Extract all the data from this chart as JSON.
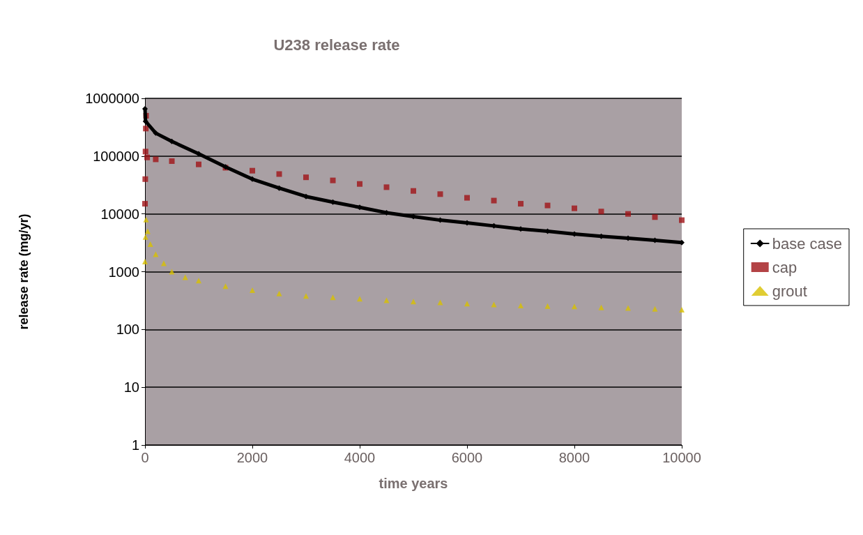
{
  "chart_data": {
    "type": "line",
    "title": "U238 release rate",
    "xlabel": "time years",
    "ylabel": "release rate (mg/yr)",
    "log": "y",
    "xlim": [
      0,
      10000
    ],
    "xticks": [
      0,
      2000,
      4000,
      6000,
      8000,
      10000
    ],
    "ylim": [
      1,
      1000000
    ],
    "yticks": [
      1,
      10,
      100,
      1000,
      10000,
      100000,
      1000000
    ],
    "grid": "y",
    "legend": "right",
    "series": [
      {
        "name": "base case",
        "type": "line",
        "marker": "diamond",
        "color": "#000000",
        "x": [
          0,
          10,
          200,
          500,
          1000,
          1500,
          2000,
          2500,
          3000,
          3500,
          4000,
          4500,
          5000,
          5500,
          6000,
          6500,
          7000,
          7500,
          8000,
          8500,
          9000,
          9500,
          10000
        ],
        "values": [
          660000,
          400000,
          250000,
          180000,
          110000,
          65000,
          40000,
          28000,
          20000,
          16000,
          13000,
          10500,
          9000,
          7800,
          7000,
          6200,
          5500,
          5000,
          4500,
          4100,
          3800,
          3500,
          3200
        ]
      },
      {
        "name": "cap",
        "type": "scatter",
        "marker": "square",
        "color": "#a01418",
        "x": [
          0,
          5,
          10,
          15,
          20,
          40,
          200,
          500,
          1000,
          1500,
          2000,
          2500,
          3000,
          3500,
          4000,
          4500,
          5000,
          5500,
          6000,
          6500,
          7000,
          7500,
          8000,
          8500,
          9000,
          9500,
          10000
        ],
        "values": [
          15000,
          40000,
          120000,
          300000,
          500000,
          95000,
          88000,
          82000,
          72000,
          63000,
          56000,
          49000,
          43000,
          38000,
          33000,
          29000,
          25000,
          22000,
          19000,
          17000,
          15000,
          14000,
          12500,
          11000,
          10000,
          8800,
          7800
        ]
      },
      {
        "name": "grout",
        "type": "scatter",
        "marker": "triangle",
        "color": "#d8c000",
        "x": [
          0,
          10,
          20,
          50,
          100,
          200,
          350,
          500,
          750,
          1000,
          1500,
          2000,
          2500,
          3000,
          3500,
          4000,
          4500,
          5000,
          5500,
          6000,
          6500,
          7000,
          7500,
          8000,
          8500,
          9000,
          9500,
          10000
        ],
        "values": [
          1500,
          4000,
          8000,
          5000,
          3000,
          2000,
          1400,
          1000,
          800,
          700,
          560,
          480,
          420,
          380,
          360,
          340,
          320,
          305,
          295,
          280,
          270,
          260,
          255,
          250,
          240,
          235,
          228,
          220
        ]
      }
    ]
  }
}
